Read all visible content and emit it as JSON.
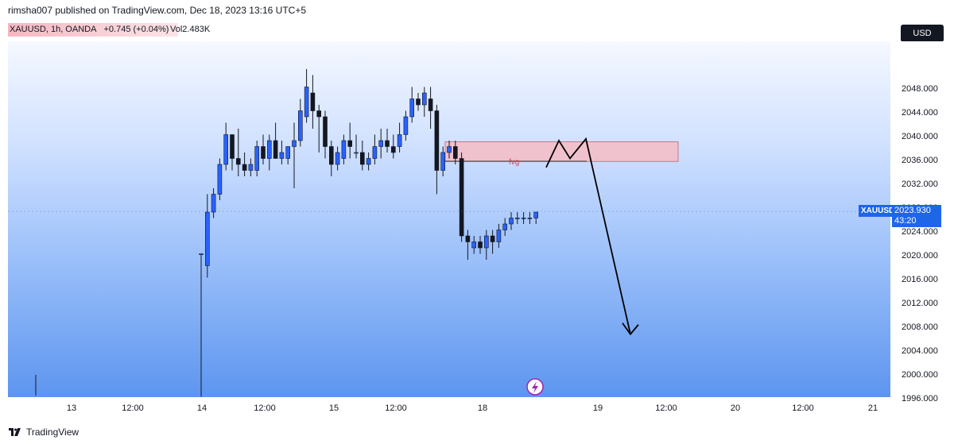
{
  "header": {
    "publish_line": "rimsha007 published on TradingView.com, Dec 18, 2023 13:16 UTC+5"
  },
  "symbol_bar": {
    "symbol": "XAUUSD, 1h, OANDA",
    "change": "+0.745 (+0.04%)",
    "volume": "Vol2.483K",
    "highlight_color": "#f5b7c1"
  },
  "currency_button": {
    "label": "USD"
  },
  "price_axis": {
    "labels": [
      "2048.000",
      "2044.000",
      "2040.000",
      "2036.000",
      "2032.000",
      "2028.000",
      "2024.000",
      "2020.000",
      "2016.000",
      "2012.000",
      "2008.000",
      "2004.000",
      "2000.000",
      "1996.000"
    ]
  },
  "time_axis": {
    "labels": [
      "13",
      "12:00",
      "14",
      "12:00",
      "15",
      "12:00",
      "18",
      "19",
      "12:00",
      "20",
      "12:00",
      "21"
    ]
  },
  "last_price": {
    "symbol": "XAUUSD",
    "price": "2023.930",
    "countdown": "43:20",
    "color": "#1e66e8"
  },
  "annotations": {
    "fvg_label": "fvg",
    "zone_color": "#f4bfc9"
  },
  "footer": {
    "brand": "TradingView"
  },
  "chart_data": {
    "type": "candlestick",
    "symbol": "XAUUSD",
    "interval": "1h",
    "ylim": [
      1993,
      2054
    ],
    "colors": {
      "up": "#2962ff",
      "down": "#131722"
    },
    "candles": [
      {
        "o": 2017,
        "h": 2017,
        "l": 1993,
        "c": 2017
      },
      {
        "o": 2015,
        "h": 2027,
        "l": 2013,
        "c": 2024
      },
      {
        "o": 2024,
        "h": 2028,
        "l": 2023,
        "c": 2027
      },
      {
        "o": 2027,
        "h": 2033,
        "l": 2026,
        "c": 2032
      },
      {
        "o": 2032,
        "h": 2039,
        "l": 2031,
        "c": 2037
      },
      {
        "o": 2037,
        "h": 2037,
        "l": 2031,
        "c": 2033
      },
      {
        "o": 2033,
        "h": 2038,
        "l": 2030,
        "c": 2032
      },
      {
        "o": 2032,
        "h": 2034,
        "l": 2030,
        "c": 2031
      },
      {
        "o": 2031,
        "h": 2033,
        "l": 2030,
        "c": 2032
      },
      {
        "o": 2031,
        "h": 2036,
        "l": 2030,
        "c": 2035
      },
      {
        "o": 2035,
        "h": 2037,
        "l": 2032,
        "c": 2033
      },
      {
        "o": 2033,
        "h": 2037,
        "l": 2031,
        "c": 2036
      },
      {
        "o": 2036,
        "h": 2039,
        "l": 2033,
        "c": 2033
      },
      {
        "o": 2033,
        "h": 2036,
        "l": 2032,
        "c": 2034
      },
      {
        "o": 2033,
        "h": 2035,
        "l": 2032,
        "c": 2035
      },
      {
        "o": 2035,
        "h": 2039,
        "l": 2028,
        "c": 2036
      },
      {
        "o": 2036,
        "h": 2043,
        "l": 2035,
        "c": 2041
      },
      {
        "o": 2040,
        "h": 2048,
        "l": 2039,
        "c": 2045
      },
      {
        "o": 2044,
        "h": 2047,
        "l": 2038,
        "c": 2041
      },
      {
        "o": 2041,
        "h": 2042,
        "l": 2034,
        "c": 2040
      },
      {
        "o": 2040,
        "h": 2041,
        "l": 2033,
        "c": 2035
      },
      {
        "o": 2035,
        "h": 2036,
        "l": 2030,
        "c": 2032
      },
      {
        "o": 2032,
        "h": 2035,
        "l": 2031,
        "c": 2034
      },
      {
        "o": 2033,
        "h": 2037,
        "l": 2032,
        "c": 2036
      },
      {
        "o": 2036,
        "h": 2039,
        "l": 2033,
        "c": 2035
      },
      {
        "o": 2034,
        "h": 2037,
        "l": 2033,
        "c": 2034
      },
      {
        "o": 2034,
        "h": 2036,
        "l": 2031,
        "c": 2032
      },
      {
        "o": 2032,
        "h": 2034,
        "l": 2031,
        "c": 2033
      },
      {
        "o": 2033,
        "h": 2037,
        "l": 2032,
        "c": 2035
      },
      {
        "o": 2035,
        "h": 2038,
        "l": 2033,
        "c": 2036
      },
      {
        "o": 2036,
        "h": 2038,
        "l": 2034,
        "c": 2035
      },
      {
        "o": 2035,
        "h": 2037,
        "l": 2033,
        "c": 2034
      },
      {
        "o": 2035,
        "h": 2039,
        "l": 2034,
        "c": 2037
      },
      {
        "o": 2037,
        "h": 2041,
        "l": 2036,
        "c": 2040
      },
      {
        "o": 2040,
        "h": 2045,
        "l": 2039,
        "c": 2043
      },
      {
        "o": 2043,
        "h": 2044,
        "l": 2041,
        "c": 2042
      },
      {
        "o": 2042,
        "h": 2045,
        "l": 2040,
        "c": 2044
      },
      {
        "o": 2043,
        "h": 2045,
        "l": 2038,
        "c": 2041
      },
      {
        "o": 2041,
        "h": 2042,
        "l": 2027,
        "c": 2031
      },
      {
        "o": 2031,
        "h": 2035,
        "l": 2030,
        "c": 2034
      },
      {
        "o": 2034,
        "h": 2036,
        "l": 2033,
        "c": 2035
      },
      {
        "o": 2035,
        "h": 2036,
        "l": 2032,
        "c": 2033
      },
      {
        "o": 2033,
        "h": 2034,
        "l": 2019,
        "c": 2020
      },
      {
        "o": 2020,
        "h": 2021,
        "l": 2016,
        "c": 2019
      },
      {
        "o": 2018,
        "h": 2020,
        "l": 2017,
        "c": 2019
      },
      {
        "o": 2019,
        "h": 2020,
        "l": 2017,
        "c": 2018
      },
      {
        "o": 2018,
        "h": 2021,
        "l": 2016,
        "c": 2020
      },
      {
        "o": 2020,
        "h": 2021,
        "l": 2017,
        "c": 2019
      },
      {
        "o": 2019,
        "h": 2022,
        "l": 2018,
        "c": 2021
      },
      {
        "o": 2021,
        "h": 2023,
        "l": 2020,
        "c": 2022
      },
      {
        "o": 2022,
        "h": 2024,
        "l": 2021,
        "c": 2023
      },
      {
        "o": 2023,
        "h": 2024,
        "l": 2022,
        "c": 2023
      },
      {
        "o": 2023,
        "h": 2024,
        "l": 2022,
        "c": 2023
      },
      {
        "o": 2023,
        "h": 2024,
        "l": 2022,
        "c": 2023
      },
      {
        "o": 2023,
        "h": 2024,
        "l": 2022,
        "c": 2024
      }
    ],
    "fvg_zone": {
      "top": 2035.8,
      "bottom": 2032.5
    },
    "projected_path": [
      2031.5,
      2036,
      2033,
      2036.3,
      2003.5
    ]
  }
}
